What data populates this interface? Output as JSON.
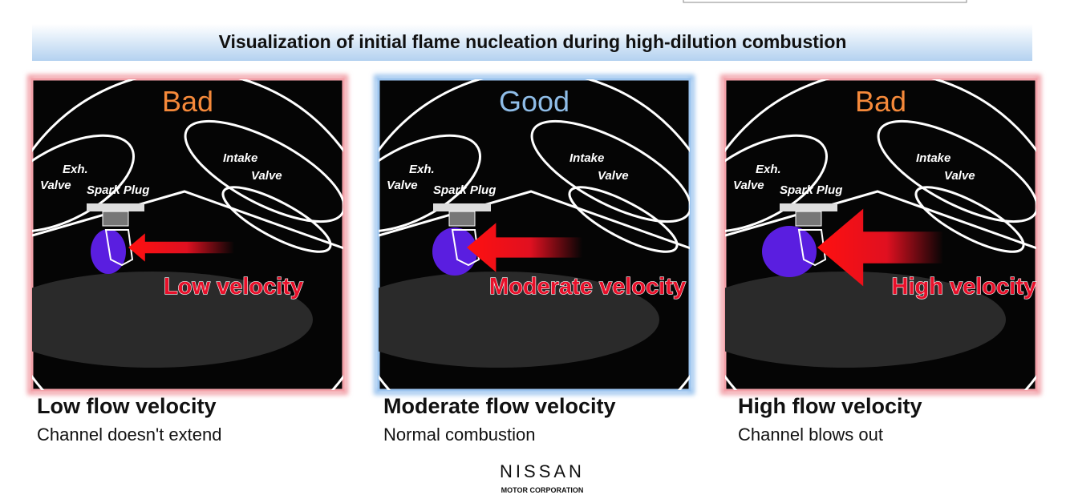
{
  "header": {
    "title": "Visualization of initial flame nucleation during high-dilution combustion"
  },
  "panels": [
    {
      "rating": "Bad",
      "rating_color": "#f5893a",
      "frame_color": "#f2a0a8",
      "exh_valve": [
        "Exh.",
        "Valve"
      ],
      "intake_valve": [
        "Intake",
        "Valve"
      ],
      "spark_plug": "Spark Plug",
      "velocity_label": "Low velocity",
      "caption_title": "Low flow velocity",
      "caption_text": "Channel doesn't extend"
    },
    {
      "rating": "Good",
      "rating_color": "#8fbde8",
      "frame_color": "#9cc4ee",
      "exh_valve": [
        "Exh.",
        "Valve"
      ],
      "intake_valve": [
        "Intake",
        "Valve"
      ],
      "spark_plug": "Spark Plug",
      "velocity_label": "Moderate velocity",
      "caption_title": "Moderate flow velocity",
      "caption_text": "Normal combustion"
    },
    {
      "rating": "Bad",
      "rating_color": "#f5893a",
      "frame_color": "#f2a0a8",
      "exh_valve": [
        "Exh.",
        "Valve"
      ],
      "intake_valve": [
        "Intake",
        "Valve"
      ],
      "spark_plug": "Spark Plug",
      "velocity_label": "High velocity",
      "caption_title": "High flow velocity",
      "caption_text": "Channel blows out"
    }
  ],
  "logo": {
    "name": "NISSAN",
    "subtitle": "MOTOR CORPORATION"
  }
}
